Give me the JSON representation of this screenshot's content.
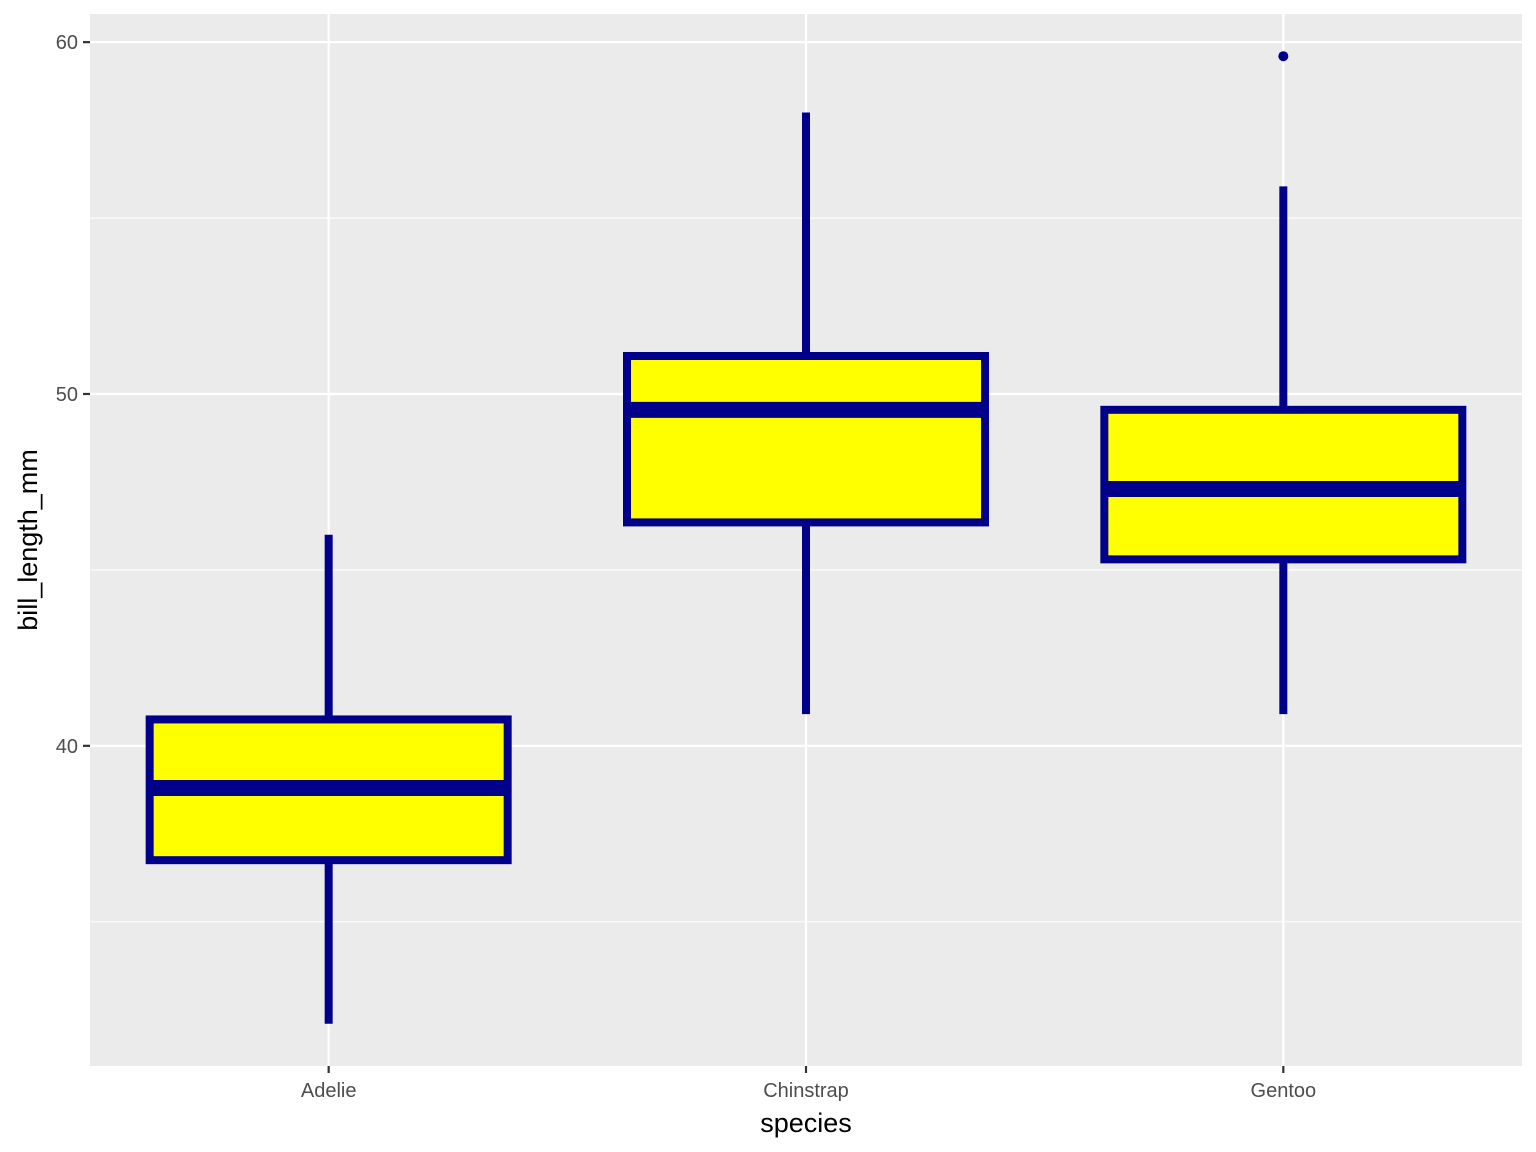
{
  "chart_data": {
    "type": "boxplot",
    "title": "",
    "xlabel": "species",
    "ylabel": "bill_length_mm",
    "categories": [
      "Adelie",
      "Chinstrap",
      "Gentoo"
    ],
    "boxes": [
      {
        "category": "Adelie",
        "min": 32.1,
        "q1": 36.75,
        "median": 38.8,
        "q3": 40.75,
        "max": 46.0,
        "outliers": []
      },
      {
        "category": "Chinstrap",
        "min": 40.9,
        "q1": 46.35,
        "median": 49.55,
        "q3": 51.08,
        "max": 58.0,
        "outliers": []
      },
      {
        "category": "Gentoo",
        "min": 40.9,
        "q1": 45.3,
        "median": 47.3,
        "q3": 49.55,
        "max": 55.9,
        "outliers": [
          59.6
        ]
      }
    ],
    "yticks": [
      40,
      50,
      60
    ],
    "ylim": [
      30.9,
      60.8
    ],
    "grid": true,
    "legend": false,
    "colors": {
      "panel_background": "#EBEBEB",
      "grid": "#FFFFFF",
      "box_fill": "#FFFF00",
      "box_line": "#00008B",
      "tick": "#333333"
    }
  }
}
